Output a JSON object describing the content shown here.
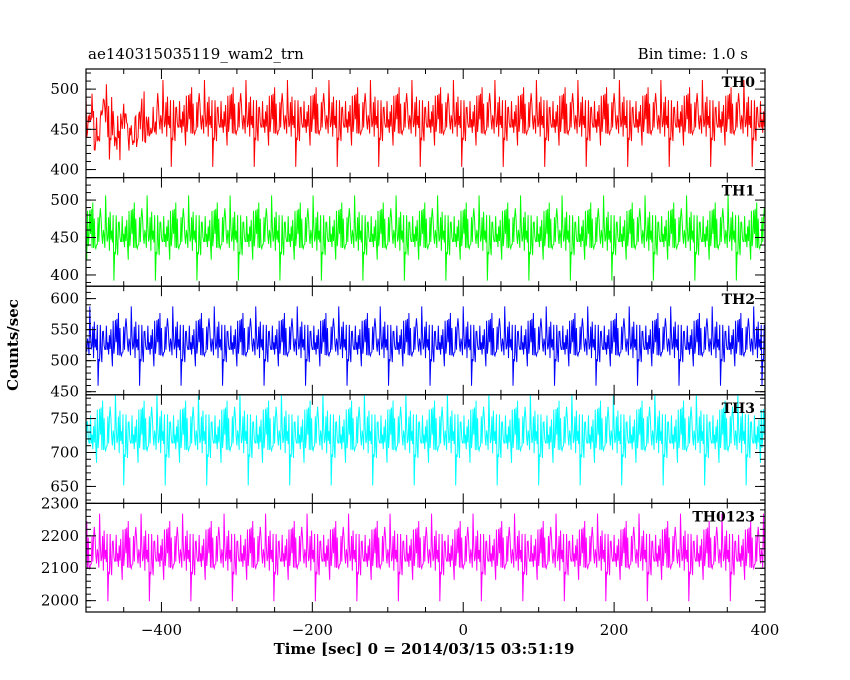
{
  "header": {
    "left_title": "ae140315035119_wam2_trn",
    "right_title": "Bin time: 1.0 s"
  },
  "y_axis_label": "Counts/sec",
  "x_axis_label": "Time [sec] 0 = 2014/03/15 03:51:19",
  "chart_data": {
    "type": "line",
    "x_range": [
      -500,
      400
    ],
    "x_ticks": [
      -400,
      -200,
      0,
      200,
      400
    ],
    "x_tick_labels": [
      "−400",
      "−200",
      "0",
      "200",
      "400"
    ],
    "bin_time_s": 1.0,
    "panels": [
      {
        "label": "TH0",
        "color": "#ff0000",
        "ylim": [
          390,
          525
        ],
        "yticks": [
          400,
          450,
          500
        ],
        "mean": 456,
        "spread": 38
      },
      {
        "label": "TH1",
        "color": "#00ff00",
        "ylim": [
          385,
          530
        ],
        "yticks": [
          400,
          450,
          500
        ],
        "mean": 448,
        "spread": 40
      },
      {
        "label": "TH2",
        "color": "#0000ff",
        "ylim": [
          445,
          620
        ],
        "yticks": [
          450,
          500,
          550,
          600
        ],
        "mean": 522,
        "spread": 45
      },
      {
        "label": "TH3",
        "color": "#00ffff",
        "ylim": [
          625,
          785
        ],
        "yticks": [
          650,
          700,
          750
        ],
        "mean": 718,
        "spread": 48
      },
      {
        "label": "TH0123",
        "color": "#ff00ff",
        "ylim": [
          1965,
          2300
        ],
        "yticks": [
          2000,
          2100,
          2200,
          2300
        ],
        "mean": 2130,
        "spread": 95
      }
    ]
  }
}
